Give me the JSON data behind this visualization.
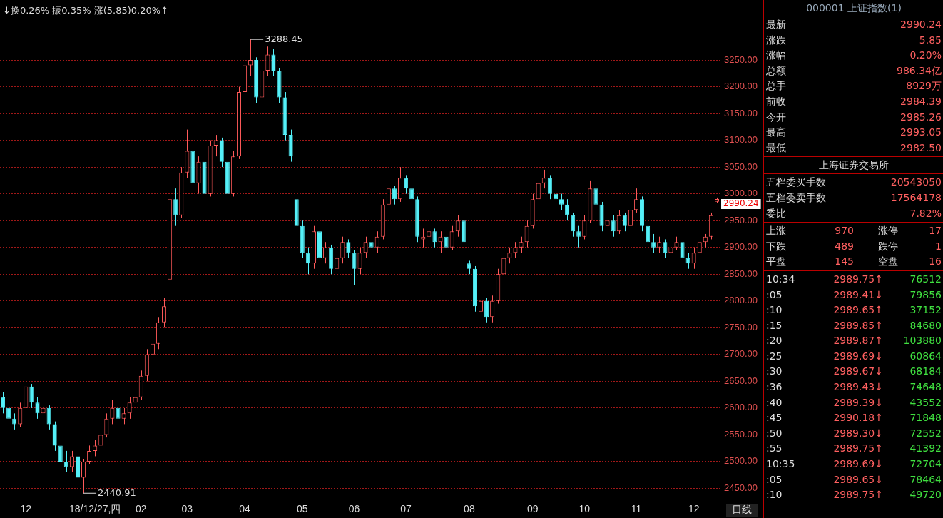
{
  "chart_data": [
    {
      "type": "candlestick",
      "categories": [
        null,
        null,
        null,
        null,
        "12",
        null,
        null,
        null,
        null,
        null,
        null,
        null,
        null,
        null,
        null,
        null,
        "18/12/27,四",
        null,
        null,
        null,
        null,
        null,
        null,
        null,
        "02",
        null,
        null,
        null,
        null,
        null,
        null,
        null,
        "03",
        null,
        null,
        null,
        null,
        null,
        null,
        null,
        null,
        null,
        "04",
        null,
        null,
        null,
        null,
        null,
        null,
        null,
        null,
        null,
        "05",
        null,
        null,
        null,
        null,
        null,
        null,
        null,
        null,
        "06",
        null,
        null,
        null,
        null,
        null,
        null,
        null,
        null,
        "07",
        null,
        null,
        null,
        null,
        null,
        null,
        null,
        null,
        null,
        null,
        "08",
        null,
        null,
        null,
        null,
        null,
        null,
        null,
        null,
        null,
        null,
        "09",
        null,
        null,
        null,
        null,
        null,
        null,
        null,
        null,
        "10",
        null,
        null,
        null,
        null,
        null,
        null,
        null,
        null,
        "11",
        null,
        null,
        null,
        null,
        null,
        null,
        null,
        null,
        null,
        "12",
        null,
        null,
        null,
        null
      ],
      "ohlc": [
        [
          2620,
          2630,
          2590,
          2600
        ],
        [
          2600,
          2610,
          2570,
          2580
        ],
        [
          2580,
          2590,
          2560,
          2570
        ],
        [
          2570,
          2610,
          2565,
          2600
        ],
        [
          2600,
          2655,
          2595,
          2640
        ],
        [
          2640,
          2645,
          2600,
          2610
        ],
        [
          2610,
          2620,
          2580,
          2590
        ],
        [
          2590,
          2610,
          2580,
          2600
        ],
        [
          2600,
          2605,
          2560,
          2570
        ],
        [
          2570,
          2575,
          2520,
          2530
        ],
        [
          2530,
          2540,
          2490,
          2500
        ],
        [
          2500,
          2520,
          2480,
          2490
        ],
        [
          2490,
          2520,
          2480,
          2510
        ],
        [
          2510,
          2515,
          2460,
          2470
        ],
        [
          2470,
          2505,
          2440.91,
          2500
        ],
        [
          2500,
          2530,
          2495,
          2520
        ],
        [
          2520,
          2540,
          2510,
          2530
        ],
        [
          2530,
          2560,
          2525,
          2550
        ],
        [
          2550,
          2590,
          2545,
          2580
        ],
        [
          2580,
          2615,
          2570,
          2600
        ],
        [
          2600,
          2605,
          2570,
          2580
        ],
        [
          2580,
          2600,
          2570,
          2590
        ],
        [
          2590,
          2620,
          2580,
          2610
        ],
        [
          2610,
          2630,
          2600,
          2620
        ],
        [
          2620,
          2670,
          2615,
          2660
        ],
        [
          2660,
          2710,
          2650,
          2700
        ],
        [
          2700,
          2730,
          2690,
          2720
        ],
        [
          2720,
          2770,
          2710,
          2760
        ],
        [
          2760,
          2805,
          2750,
          2790
        ],
        [
          2840,
          3000,
          2835,
          2990
        ],
        [
          2990,
          3010,
          2940,
          2960
        ],
        [
          2960,
          3050,
          2955,
          3040
        ],
        [
          3040,
          3120,
          3030,
          3080
        ],
        [
          3080,
          3090,
          3010,
          3020
        ],
        [
          3020,
          3070,
          3000,
          3060
        ],
        [
          3060,
          3065,
          2990,
          3000
        ],
        [
          3000,
          3100,
          2995,
          3090
        ],
        [
          3090,
          3110,
          3070,
          3100
        ],
        [
          3100,
          3105,
          3050,
          3060
        ],
        [
          3060,
          3070,
          2990,
          3000
        ],
        [
          3000,
          3080,
          2995,
          3070
        ],
        [
          3070,
          3200,
          3065,
          3190
        ],
        [
          3190,
          3250,
          3180,
          3240
        ],
        [
          3240,
          3288.45,
          3220,
          3250
        ],
        [
          3250,
          3255,
          3170,
          3180
        ],
        [
          3180,
          3240,
          3170,
          3230
        ],
        [
          3230,
          3275,
          3220,
          3260
        ],
        [
          3260,
          3270,
          3220,
          3230
        ],
        [
          3230,
          3235,
          3170,
          3180
        ],
        [
          3180,
          3190,
          3100,
          3110
        ],
        [
          3110,
          3120,
          3060,
          3070
        ],
        [
          2990,
          2995,
          2930,
          2940
        ],
        [
          2940,
          2950,
          2880,
          2890
        ],
        [
          2890,
          2900,
          2850,
          2870
        ],
        [
          2870,
          2940,
          2860,
          2930
        ],
        [
          2930,
          2935,
          2870,
          2880
        ],
        [
          2880,
          2910,
          2870,
          2900
        ],
        [
          2900,
          2905,
          2850,
          2860
        ],
        [
          2860,
          2890,
          2850,
          2880
        ],
        [
          2880,
          2920,
          2870,
          2910
        ],
        [
          2910,
          2915,
          2880,
          2890
        ],
        [
          2890,
          2895,
          2830,
          2860
        ],
        [
          2860,
          2900,
          2850,
          2890
        ],
        [
          2890,
          2920,
          2880,
          2910
        ],
        [
          2910,
          2915,
          2890,
          2900
        ],
        [
          2900,
          2930,
          2890,
          2920
        ],
        [
          2920,
          2990,
          2915,
          2980
        ],
        [
          2980,
          3020,
          2970,
          3010
        ],
        [
          3010,
          3015,
          2980,
          2990
        ],
        [
          2990,
          3050,
          2985,
          3030
        ],
        [
          3030,
          3035,
          3000,
          3010
        ],
        [
          3010,
          3015,
          2980,
          2990
        ],
        [
          2990,
          2995,
          2910,
          2920
        ],
        [
          2915,
          2935,
          2900,
          2920
        ],
        [
          2920,
          2940,
          2905,
          2930
        ],
        [
          2930,
          2935,
          2900,
          2910
        ],
        [
          2910,
          2930,
          2890,
          2920
        ],
        [
          2920,
          2925,
          2880,
          2900
        ],
        [
          2900,
          2940,
          2895,
          2930
        ],
        [
          2930,
          2960,
          2920,
          2950
        ],
        [
          2950,
          2955,
          2900,
          2910
        ],
        [
          2870,
          2875,
          2850,
          2860
        ],
        [
          2860,
          2865,
          2780,
          2790
        ],
        [
          2780,
          2810,
          2740,
          2800
        ],
        [
          2800,
          2805,
          2760,
          2770
        ],
        [
          2770,
          2810,
          2760,
          2800
        ],
        [
          2800,
          2860,
          2795,
          2850
        ],
        [
          2850,
          2890,
          2840,
          2880
        ],
        [
          2880,
          2900,
          2870,
          2890
        ],
        [
          2890,
          2910,
          2880,
          2900
        ],
        [
          2900,
          2920,
          2890,
          2910
        ],
        [
          2910,
          2950,
          2900,
          2940
        ],
        [
          2940,
          3000,
          2935,
          2990
        ],
        [
          2990,
          3030,
          2985,
          3020
        ],
        [
          3020,
          3045,
          3010,
          3030
        ],
        [
          3030,
          3035,
          2990,
          3000
        ],
        [
          3000,
          3010,
          2980,
          2990
        ],
        [
          2990,
          3000,
          2970,
          2980
        ],
        [
          2980,
          2990,
          2950,
          2960
        ],
        [
          2960,
          2965,
          2920,
          2930
        ],
        [
          2930,
          2940,
          2900,
          2920
        ],
        [
          2920,
          2960,
          2915,
          2950
        ],
        [
          2950,
          3025,
          2945,
          3010
        ],
        [
          3010,
          3015,
          2970,
          2980
        ],
        [
          2980,
          2985,
          2930,
          2940
        ],
        [
          2940,
          2960,
          2930,
          2950
        ],
        [
          2950,
          2960,
          2920,
          2930
        ],
        [
          2930,
          2970,
          2925,
          2960
        ],
        [
          2960,
          2965,
          2930,
          2940
        ],
        [
          2940,
          2980,
          2935,
          2970
        ],
        [
          2970,
          3010,
          2965,
          2990
        ],
        [
          2990,
          2995,
          2930,
          2940
        ],
        [
          2940,
          2945,
          2900,
          2910
        ],
        [
          2910,
          2925,
          2890,
          2900
        ],
        [
          2900,
          2920,
          2890,
          2910
        ],
        [
          2910,
          2915,
          2880,
          2890
        ],
        [
          2890,
          2910,
          2880,
          2900
        ],
        [
          2900,
          2920,
          2895,
          2910
        ],
        [
          2910,
          2915,
          2870,
          2880
        ],
        [
          2880,
          2890,
          2860,
          2870
        ],
        [
          2870,
          2900,
          2860,
          2890
        ],
        [
          2890,
          2920,
          2885,
          2910
        ],
        [
          2910,
          2925,
          2900,
          2920
        ],
        [
          2920,
          2965,
          2915,
          2960
        ],
        [
          2985.26,
          2993.05,
          2982.5,
          2990.24
        ]
      ],
      "ylim": [
        2425,
        3330
      ],
      "yticks": [
        {
          "value": 2450,
          "label": "2450.00"
        },
        {
          "value": 2500,
          "label": "2500.00"
        },
        {
          "value": 2550,
          "label": "2550.00"
        },
        {
          "value": 2600,
          "label": "2600.00"
        },
        {
          "value": 2650,
          "label": "2650.00"
        },
        {
          "value": 2700,
          "label": "2700.00"
        },
        {
          "value": 2750,
          "label": "2750.00"
        },
        {
          "value": 2800,
          "label": "2800.00"
        },
        {
          "value": 2850,
          "label": "2850.00"
        },
        {
          "value": 2900,
          "label": "2900.00"
        },
        {
          "value": 2950,
          "label": "2950.00"
        },
        {
          "value": 3000,
          "label": "3000.00"
        },
        {
          "value": 3050,
          "label": "3050.00"
        },
        {
          "value": 3100,
          "label": "3100.00"
        },
        {
          "value": 3150,
          "label": "3150.00"
        },
        {
          "value": 3200,
          "label": "3200.00"
        },
        {
          "value": 3250,
          "label": "3250.00"
        }
      ],
      "grid": "y",
      "annotations": [
        "↓换0.26% 振0.35% 涨(5.85)0.20%↑",
        "日线",
        "3288.45",
        "2440.91",
        "2990.24"
      ]
    },
    {
      "type": "other",
      "title": "000001 上证指数(1)",
      "annotations": [
        "最新",
        "2990.24",
        "涨跌",
        "5.85",
        "涨幅",
        "0.20%",
        "总额",
        "986.34亿",
        "总手",
        "8929万",
        "前收",
        "2984.39",
        "今开",
        "2985.26",
        "最高",
        "2993.05",
        "最低",
        "2982.50",
        "上海证券交易所",
        "五档委买手数",
        "20543050",
        "五档委卖手数",
        "17564178",
        "委比",
        "7.82%",
        "上涨",
        "970",
        "涨停",
        "17",
        "下跌",
        "489",
        "跌停",
        "1",
        "平盘",
        "145",
        "空盘",
        "16",
        "10:34",
        "2989.75↑",
        "76512",
        ":05",
        "2989.41↓",
        "79856",
        ":10",
        "2989.65↑",
        "37152",
        ":15",
        "2989.85↑",
        "84680",
        ":20",
        "2989.87↑",
        "103880",
        ":25",
        "2989.69↓",
        "60864",
        ":30",
        "2989.67↓",
        "68184",
        ":36",
        "2989.43↓",
        "74648",
        ":40",
        "2989.39↓",
        "43552",
        ":45",
        "2990.18↑",
        "71848",
        ":50",
        "2989.30↓",
        "72552",
        ":55",
        "2989.75↑",
        "41392",
        "10:35",
        "2989.69↓",
        "72704",
        ":05",
        "2989.65↓",
        "78464",
        ":10",
        "2989.75↑",
        "49720"
      ]
    }
  ]
}
